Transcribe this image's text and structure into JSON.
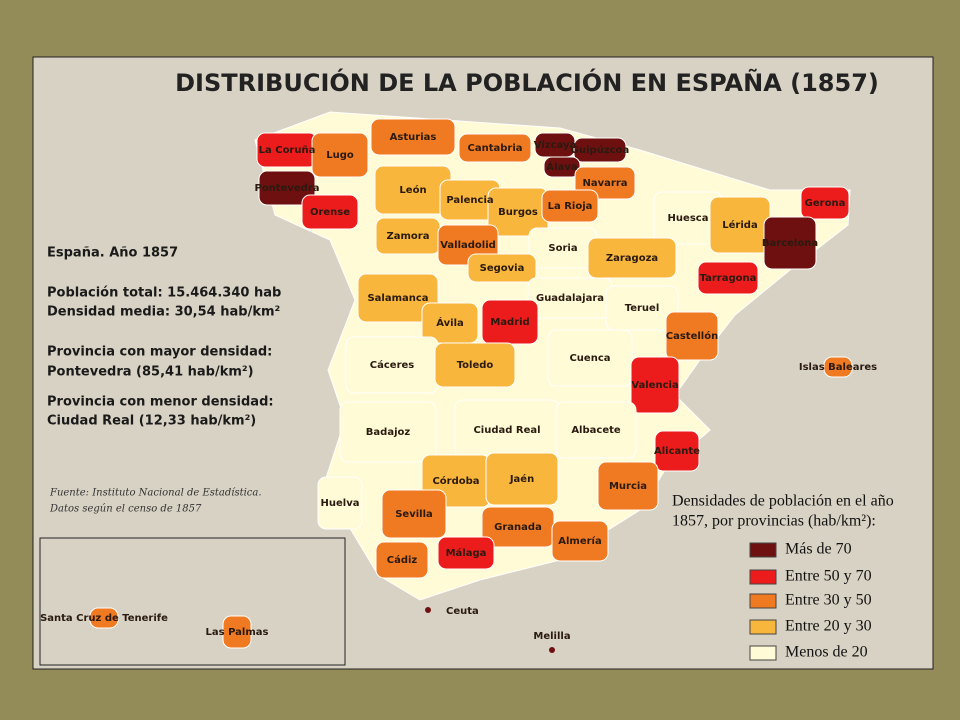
{
  "title": "DISTRIBUCIÓN DE LA POBLACIÓN EN ESPAÑA (1857)",
  "info": [
    "España. Año 1857",
    "Población total: 15.464.340 hab",
    "Densidad media: 30,54 hab/km²",
    "Provincia con mayor densidad:",
    "Pontevedra (85,41 hab/km²)",
    "Provincia con menor densidad:",
    "Ciudad Real (12,33 hab/km²)"
  ],
  "source": [
    "Fuente: Instituto Nacional de Estadística.",
    "Datos según el censo de 1857"
  ],
  "legend": {
    "title": [
      "Densidades de población en el año",
      "1857, por provincias (hab/km²):"
    ],
    "items": [
      {
        "label": "Más de 70",
        "color": "#6e1010"
      },
      {
        "label": "Entre 50 y 70",
        "color": "#ec1c1c"
      },
      {
        "label": "Entre 30 y 50",
        "color": "#f07a22"
      },
      {
        "label": "Entre 20 y 30",
        "color": "#f8b63c"
      },
      {
        "label": "Menos de 20",
        "color": "#fffbd6"
      }
    ]
  },
  "provinces": [
    {
      "label": "La Coruña",
      "color": "#ec1c1c"
    },
    {
      "label": "Lugo",
      "color": "#f07a22"
    },
    {
      "label": "Pontevedra",
      "color": "#6e1010"
    },
    {
      "label": "Orense",
      "color": "#ec1c1c"
    },
    {
      "label": "Asturias",
      "color": "#f07a22"
    },
    {
      "label": "Cantabria",
      "color": "#f07a22"
    },
    {
      "label": "Vizcaya",
      "color": "#6e1010"
    },
    {
      "label": "Guipúzcoa",
      "color": "#6e1010"
    },
    {
      "label": "Álava",
      "color": "#6e1010"
    },
    {
      "label": "Navarra",
      "color": "#f07a22"
    },
    {
      "label": "León",
      "color": "#f8b63c"
    },
    {
      "label": "Palencia",
      "color": "#f8b63c"
    },
    {
      "label": "Burgos",
      "color": "#f8b63c"
    },
    {
      "label": "La Rioja",
      "color": "#f07a22"
    },
    {
      "label": "Huesca",
      "color": "#fffbd6"
    },
    {
      "label": "Lérida",
      "color": "#f8b63c"
    },
    {
      "label": "Gerona",
      "color": "#ec1c1c"
    },
    {
      "label": "Barcelona",
      "color": "#6e1010"
    },
    {
      "label": "Zamora",
      "color": "#f8b63c"
    },
    {
      "label": "Valladolid",
      "color": "#f07a22"
    },
    {
      "label": "Soria",
      "color": "#fffbd6"
    },
    {
      "label": "Zaragoza",
      "color": "#f8b63c"
    },
    {
      "label": "Segovia",
      "color": "#f8b63c"
    },
    {
      "label": "Tarragona",
      "color": "#ec1c1c"
    },
    {
      "label": "Salamanca",
      "color": "#f8b63c"
    },
    {
      "label": "Guadalajara",
      "color": "#fffbd6"
    },
    {
      "label": "Teruel",
      "color": "#fffbd6"
    },
    {
      "label": "Ávila",
      "color": "#f8b63c"
    },
    {
      "label": "Madrid",
      "color": "#ec1c1c"
    },
    {
      "label": "Castellón",
      "color": "#f07a22"
    },
    {
      "label": "Cáceres",
      "color": "#fffbd6"
    },
    {
      "label": "Toledo",
      "color": "#f8b63c"
    },
    {
      "label": "Cuenca",
      "color": "#fffbd6"
    },
    {
      "label": "Valencia",
      "color": "#ec1c1c"
    },
    {
      "label": "Islas Baleares",
      "color": "#f07a22"
    },
    {
      "label": "Badajoz",
      "color": "#fffbd6"
    },
    {
      "label": "Ciudad Real",
      "color": "#fffbd6"
    },
    {
      "label": "Albacete",
      "color": "#fffbd6"
    },
    {
      "label": "Alicante",
      "color": "#ec1c1c"
    },
    {
      "label": "Córdoba",
      "color": "#f8b63c"
    },
    {
      "label": "Jaén",
      "color": "#f8b63c"
    },
    {
      "label": "Murcia",
      "color": "#f07a22"
    },
    {
      "label": "Huelva",
      "color": "#fffbd6"
    },
    {
      "label": "Sevilla",
      "color": "#f07a22"
    },
    {
      "label": "Granada",
      "color": "#f07a22"
    },
    {
      "label": "Almería",
      "color": "#f07a22"
    },
    {
      "label": "Cádiz",
      "color": "#f07a22"
    },
    {
      "label": "Málaga",
      "color": "#ec1c1c"
    },
    {
      "label": "Santa Cruz de Tenerife",
      "color": "#f07a22"
    },
    {
      "label": "Las Palmas",
      "color": "#f07a22"
    }
  ],
  "cities": [
    "Ceuta",
    "Melilla"
  ]
}
